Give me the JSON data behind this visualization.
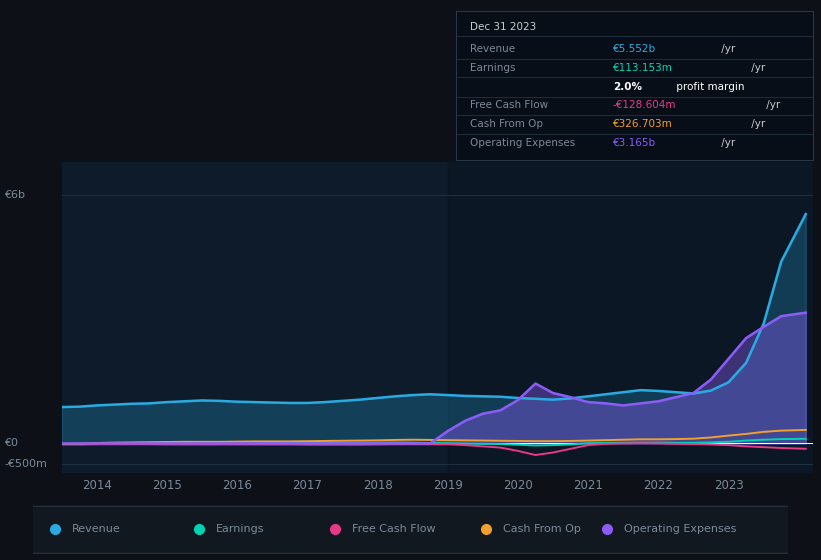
{
  "bg_color": "#0d1117",
  "plot_bg_color": "#0d1b2a",
  "plot_bg_color2": "#131c2e",
  "grid_color": "#253545",
  "text_color": "#7a8a9a",
  "years": [
    2013.5,
    2013.75,
    2014.0,
    2014.25,
    2014.5,
    2014.75,
    2015.0,
    2015.25,
    2015.5,
    2015.75,
    2016.0,
    2016.25,
    2016.5,
    2016.75,
    2017.0,
    2017.25,
    2017.5,
    2017.75,
    2018.0,
    2018.25,
    2018.5,
    2018.75,
    2019.0,
    2019.25,
    2019.5,
    2019.75,
    2020.0,
    2020.25,
    2020.5,
    2020.75,
    2021.0,
    2021.25,
    2021.5,
    2021.75,
    2022.0,
    2022.25,
    2022.5,
    2022.75,
    2023.0,
    2023.25,
    2023.5,
    2023.75,
    2024.1
  ],
  "revenue": [
    0.88,
    0.89,
    0.92,
    0.94,
    0.96,
    0.97,
    1.0,
    1.02,
    1.04,
    1.03,
    1.01,
    1.0,
    0.99,
    0.98,
    0.98,
    1.0,
    1.03,
    1.06,
    1.1,
    1.14,
    1.17,
    1.19,
    1.17,
    1.15,
    1.14,
    1.13,
    1.1,
    1.08,
    1.06,
    1.09,
    1.14,
    1.19,
    1.24,
    1.29,
    1.27,
    1.24,
    1.21,
    1.28,
    1.48,
    1.95,
    2.9,
    4.4,
    5.55
  ],
  "earnings": [
    -0.02,
    -0.02,
    -0.015,
    -0.01,
    -0.005,
    0.0,
    0.005,
    0.005,
    0.0,
    -0.005,
    -0.005,
    0.0,
    0.005,
    0.01,
    0.01,
    0.01,
    0.015,
    0.02,
    0.02,
    0.025,
    0.02,
    0.01,
    0.005,
    -0.005,
    -0.01,
    -0.015,
    -0.03,
    -0.05,
    -0.04,
    -0.025,
    0.005,
    0.01,
    0.015,
    0.02,
    0.02,
    0.015,
    0.015,
    0.025,
    0.04,
    0.07,
    0.09,
    0.105,
    0.113
  ],
  "free_cash_flow": [
    -0.02,
    -0.02,
    -0.02,
    -0.02,
    -0.02,
    -0.02,
    -0.025,
    -0.025,
    -0.025,
    -0.025,
    -0.025,
    -0.025,
    -0.025,
    -0.025,
    -0.03,
    -0.03,
    -0.03,
    -0.03,
    -0.025,
    -0.02,
    -0.02,
    -0.02,
    -0.02,
    -0.04,
    -0.07,
    -0.1,
    -0.18,
    -0.28,
    -0.22,
    -0.13,
    -0.04,
    -0.01,
    0.0,
    0.005,
    0.0,
    -0.01,
    -0.015,
    -0.025,
    -0.04,
    -0.07,
    -0.09,
    -0.11,
    -0.129
  ],
  "cash_from_op": [
    -0.01,
    -0.005,
    0.01,
    0.02,
    0.025,
    0.03,
    0.035,
    0.04,
    0.04,
    0.04,
    0.045,
    0.05,
    0.05,
    0.05,
    0.055,
    0.06,
    0.065,
    0.07,
    0.075,
    0.085,
    0.09,
    0.085,
    0.08,
    0.075,
    0.07,
    0.065,
    0.06,
    0.055,
    0.055,
    0.06,
    0.07,
    0.08,
    0.09,
    0.1,
    0.1,
    0.105,
    0.115,
    0.145,
    0.19,
    0.23,
    0.28,
    0.31,
    0.327
  ],
  "op_expenses": [
    0.0,
    0.0,
    0.0,
    0.0,
    0.0,
    0.0,
    0.0,
    0.0,
    0.0,
    0.0,
    0.0,
    0.0,
    0.0,
    0.0,
    0.0,
    0.0,
    0.0,
    0.0,
    0.0,
    0.0,
    0.0,
    0.0,
    0.3,
    0.55,
    0.72,
    0.8,
    1.05,
    1.45,
    1.22,
    1.12,
    1.0,
    0.97,
    0.92,
    0.97,
    1.02,
    1.12,
    1.22,
    1.55,
    2.05,
    2.55,
    2.82,
    3.08,
    3.165
  ],
  "revenue_color": "#29abe2",
  "earnings_color": "#00d4b4",
  "free_cash_flow_color": "#e8388a",
  "cash_from_op_color": "#f0a030",
  "op_expenses_color": "#8b5cf6",
  "infobox": {
    "date": "Dec 31 2023",
    "revenue_label": "Revenue",
    "revenue_value": "€5.552b",
    "revenue_unit": " /yr",
    "revenue_color": "#29abe2",
    "earnings_label": "Earnings",
    "earnings_value": "€113.153m",
    "earnings_unit": " /yr",
    "earnings_color": "#00d4b4",
    "margin_pct": "2.0%",
    "margin_text": " profit margin",
    "fcf_label": "Free Cash Flow",
    "fcf_value": "-€128.604m",
    "fcf_unit": " /yr",
    "fcf_color": "#e8388a",
    "cashop_label": "Cash From Op",
    "cashop_value": "€326.703m",
    "cashop_unit": " /yr",
    "cashop_color": "#f0a030",
    "opex_label": "Operating Expenses",
    "opex_value": "€3.165b",
    "opex_unit": " /yr",
    "opex_color": "#8b5cf6",
    "bg": "#080e18",
    "border": "#2a3a4a",
    "label_color": "#7a8a9a",
    "title_color": "#cccccc",
    "value_gray": "#cccccc"
  },
  "legend": [
    {
      "label": "Revenue",
      "color": "#29abe2"
    },
    {
      "label": "Earnings",
      "color": "#00d4b4"
    },
    {
      "label": "Free Cash Flow",
      "color": "#e8388a"
    },
    {
      "label": "Cash From Op",
      "color": "#f0a030"
    },
    {
      "label": "Operating Expenses",
      "color": "#8b5cf6"
    }
  ],
  "ytick_labels": [
    "€6b",
    "€0",
    "-€500m"
  ],
  "ytick_values": [
    6.0,
    0.0,
    -0.5
  ],
  "xlim": [
    2013.5,
    2024.2
  ],
  "ylim": [
    -0.72,
    6.8
  ],
  "xticks": [
    2014,
    2015,
    2016,
    2017,
    2018,
    2019,
    2020,
    2021,
    2022,
    2023
  ]
}
